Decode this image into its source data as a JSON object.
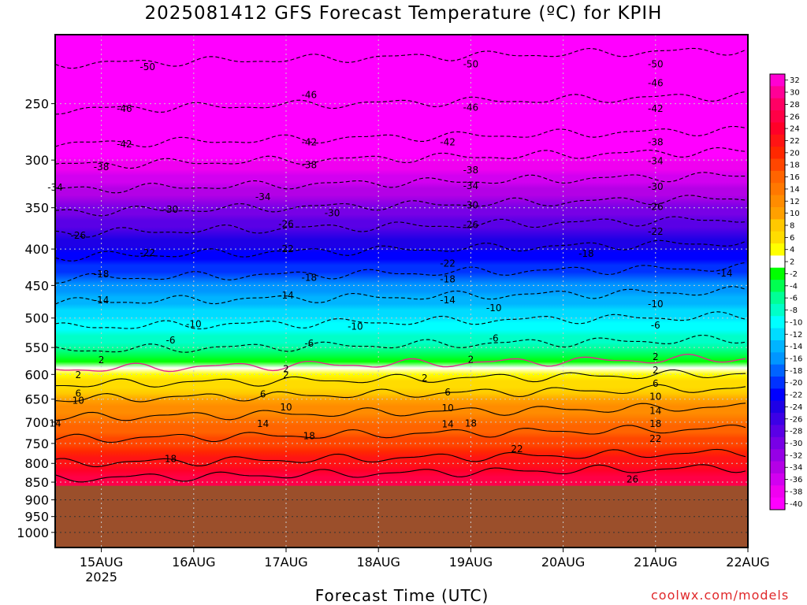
{
  "title": "2025081412 GFS Forecast Temperature (ºC) for KPIH",
  "credit": "coolwx.com/models",
  "colors": {
    "ground": "#9b4f2b",
    "freezing_line": "#e0288c",
    "credit": "#e0282a"
  },
  "chart_data": {
    "type": "heatmap",
    "title": "2025081412 GFS Forecast Temperature (ºC) for KPIH",
    "xlabel": "Forecast Time (UTC)",
    "ylabel": "",
    "x_ticks": [
      "15AUG",
      "16AUG",
      "17AUG",
      "18AUG",
      "19AUG",
      "20AUG",
      "21AUG",
      "22AUG"
    ],
    "x_tick_sublabel": "2025",
    "x_range": [
      "14AUG 12Z",
      "22AUG 00Z"
    ],
    "y_ticks": [
      250,
      300,
      350,
      400,
      450,
      500,
      550,
      600,
      650,
      700,
      750,
      800,
      850,
      900,
      950,
      1000
    ],
    "y_range": [
      200,
      1050
    ],
    "ground_level_hPa": 860,
    "colorbar": [
      32,
      30,
      28,
      26,
      24,
      22,
      20,
      18,
      16,
      14,
      12,
      10,
      8,
      6,
      4,
      2,
      -2,
      -4,
      -6,
      -8,
      -10,
      -12,
      -14,
      -16,
      -18,
      -20,
      -22,
      -24,
      -26,
      -28,
      -30,
      -32,
      -34,
      -36,
      -38,
      -40
    ],
    "colorbar_colors": [
      "#ff00d2",
      "#ff0096",
      "#ff0064",
      "#ff0046",
      "#ff0028",
      "#ff1414",
      "#ff2800",
      "#ff4600",
      "#ff6400",
      "#ff7800",
      "#ff8c00",
      "#ffa000",
      "#ffc800",
      "#ffdc00",
      "#ffff00",
      "#ffffff",
      "#00ff00",
      "#00ff50",
      "#00ff96",
      "#00ffc8",
      "#00ffff",
      "#00dcff",
      "#00b4ff",
      "#0096ff",
      "#0064ff",
      "#0032ff",
      "#0000ff",
      "#1e00e6",
      "#3c00e6",
      "#5a00e6",
      "#7800e6",
      "#9600e6",
      "#b400e6",
      "#d200f0",
      "#f000f0",
      "#ff00ff"
    ],
    "contour_profile": [
      {
        "p": 220,
        "t": -50
      },
      {
        "p": 255,
        "t": -46
      },
      {
        "p": 285,
        "t": -42
      },
      {
        "p": 305,
        "t": -38
      },
      {
        "p": 330,
        "t": -34
      },
      {
        "p": 355,
        "t": -30
      },
      {
        "p": 380,
        "t": -26
      },
      {
        "p": 410,
        "t": -22
      },
      {
        "p": 440,
        "t": -18
      },
      {
        "p": 475,
        "t": -14
      },
      {
        "p": 515,
        "t": -10
      },
      {
        "p": 555,
        "t": -6
      },
      {
        "p": 590,
        "t": 2
      },
      {
        "p": 620,
        "t": 6
      },
      {
        "p": 650,
        "t": 10
      },
      {
        "p": 690,
        "t": 14
      },
      {
        "p": 740,
        "t": 18
      },
      {
        "p": 800,
        "t": 22
      },
      {
        "p": 840,
        "t": 26
      }
    ],
    "contour_labels": [
      {
        "label": "-50",
        "x": "15AUG 12Z",
        "p": 222
      },
      {
        "label": "-50",
        "x": "19AUG 00Z",
        "p": 220
      },
      {
        "label": "-50",
        "x": "21AUG 00Z",
        "p": 220
      },
      {
        "label": "-46",
        "x": "15AUG 06Z",
        "p": 254
      },
      {
        "label": "-46",
        "x": "17AUG 06Z",
        "p": 243
      },
      {
        "label": "-46",
        "x": "19AUG 00Z",
        "p": 253
      },
      {
        "label": "-46",
        "x": "21AUG 00Z",
        "p": 234
      },
      {
        "label": "-42",
        "x": "15AUG 06Z",
        "p": 285
      },
      {
        "label": "-42",
        "x": "17AUG 06Z",
        "p": 283
      },
      {
        "label": "-42",
        "x": "18AUG 18Z",
        "p": 283
      },
      {
        "label": "-42",
        "x": "21AUG 00Z",
        "p": 254
      },
      {
        "label": "-38",
        "x": "15AUG 00Z",
        "p": 307
      },
      {
        "label": "-38",
        "x": "17AUG 06Z",
        "p": 305
      },
      {
        "label": "-38",
        "x": "19AUG 00Z",
        "p": 310
      },
      {
        "label": "-38",
        "x": "21AUG 00Z",
        "p": 283
      },
      {
        "label": "-34",
        "x": "14AUG 12Z",
        "p": 328
      },
      {
        "label": "-34",
        "x": "16AUG 18Z",
        "p": 338
      },
      {
        "label": "-34",
        "x": "19AUG 00Z",
        "p": 326
      },
      {
        "label": "-34",
        "x": "21AUG 00Z",
        "p": 301
      },
      {
        "label": "-30",
        "x": "15AUG 18Z",
        "p": 352
      },
      {
        "label": "-30",
        "x": "17AUG 12Z",
        "p": 356
      },
      {
        "label": "-30",
        "x": "19AUG 00Z",
        "p": 347
      },
      {
        "label": "-30",
        "x": "21AUG 00Z",
        "p": 327
      },
      {
        "label": "-26",
        "x": "14AUG 18Z",
        "p": 383
      },
      {
        "label": "-26",
        "x": "17AUG 00Z",
        "p": 369
      },
      {
        "label": "-26",
        "x": "19AUG 00Z",
        "p": 370
      },
      {
        "label": "-26",
        "x": "21AUG 00Z",
        "p": 349
      },
      {
        "label": "-22",
        "x": "15AUG 12Z",
        "p": 405
      },
      {
        "label": "-22",
        "x": "17AUG 00Z",
        "p": 400
      },
      {
        "label": "-22",
        "x": "18AUG 18Z",
        "p": 419
      },
      {
        "label": "-22",
        "x": "21AUG 00Z",
        "p": 378
      },
      {
        "label": "-18",
        "x": "15AUG 00Z",
        "p": 434
      },
      {
        "label": "-18",
        "x": "17AUG 06Z",
        "p": 439
      },
      {
        "label": "-18",
        "x": "18AUG 18Z",
        "p": 441
      },
      {
        "label": "-18",
        "x": "20AUG 06Z",
        "p": 406
      },
      {
        "label": "-14",
        "x": "15AUG 00Z",
        "p": 472
      },
      {
        "label": "-14",
        "x": "17AUG 00Z",
        "p": 465
      },
      {
        "label": "-14",
        "x": "18AUG 18Z",
        "p": 472
      },
      {
        "label": "-14",
        "x": "21AUG 18Z",
        "p": 433
      },
      {
        "label": "-10",
        "x": "16AUG 00Z",
        "p": 510
      },
      {
        "label": "-10",
        "x": "17AUG 18Z",
        "p": 514
      },
      {
        "label": "-10",
        "x": "19AUG 06Z",
        "p": 484
      },
      {
        "label": "-10",
        "x": "21AUG 00Z",
        "p": 478
      },
      {
        "label": "-6",
        "x": "15AUG 18Z",
        "p": 537
      },
      {
        "label": "-6",
        "x": "17AUG 06Z",
        "p": 543
      },
      {
        "label": "-6",
        "x": "19AUG 06Z",
        "p": 534
      },
      {
        "label": "-6",
        "x": "21AUG 00Z",
        "p": 512
      },
      {
        "label": "2",
        "x": "15AUG 00Z",
        "p": 573
      },
      {
        "label": "2",
        "x": "17AUG 00Z",
        "p": 590
      },
      {
        "label": "2",
        "x": "17AUG 00Z",
        "p": 601
      },
      {
        "label": "2",
        "x": "18AUG 12Z",
        "p": 607
      },
      {
        "label": "2",
        "x": "19AUG 00Z",
        "p": 572
      },
      {
        "label": "2",
        "x": "21AUG 00Z",
        "p": 592
      },
      {
        "label": "2",
        "x": "21AUG 00Z",
        "p": 567
      },
      {
        "label": "2",
        "x": "14AUG 18Z",
        "p": 601
      },
      {
        "label": "6",
        "x": "14AUG 18Z",
        "p": 638
      },
      {
        "label": "6",
        "x": "16AUG 18Z",
        "p": 640
      },
      {
        "label": "6",
        "x": "18AUG 18Z",
        "p": 636
      },
      {
        "label": "6",
        "x": "21AUG 00Z",
        "p": 618
      },
      {
        "label": "10",
        "x": "14AUG 18Z",
        "p": 653
      },
      {
        "label": "10",
        "x": "17AUG 00Z",
        "p": 667
      },
      {
        "label": "10",
        "x": "18AUG 18Z",
        "p": 669
      },
      {
        "label": "10",
        "x": "21AUG 00Z",
        "p": 645
      },
      {
        "label": "14",
        "x": "14AUG 12Z",
        "p": 703
      },
      {
        "label": "14",
        "x": "16AUG 18Z",
        "p": 704
      },
      {
        "label": "14",
        "x": "18AUG 18Z",
        "p": 705
      },
      {
        "label": "14",
        "x": "21AUG 00Z",
        "p": 675
      },
      {
        "label": "18",
        "x": "15AUG 18Z",
        "p": 788
      },
      {
        "label": "18",
        "x": "17AUG 06Z",
        "p": 732
      },
      {
        "label": "18",
        "x": "19AUG 00Z",
        "p": 703
      },
      {
        "label": "18",
        "x": "21AUG 00Z",
        "p": 704
      },
      {
        "label": "22",
        "x": "19AUG 12Z",
        "p": 764
      },
      {
        "label": "22",
        "x": "21AUG 00Z",
        "p": 739
      },
      {
        "label": "26",
        "x": "20AUG 18Z",
        "p": 842
      }
    ]
  }
}
